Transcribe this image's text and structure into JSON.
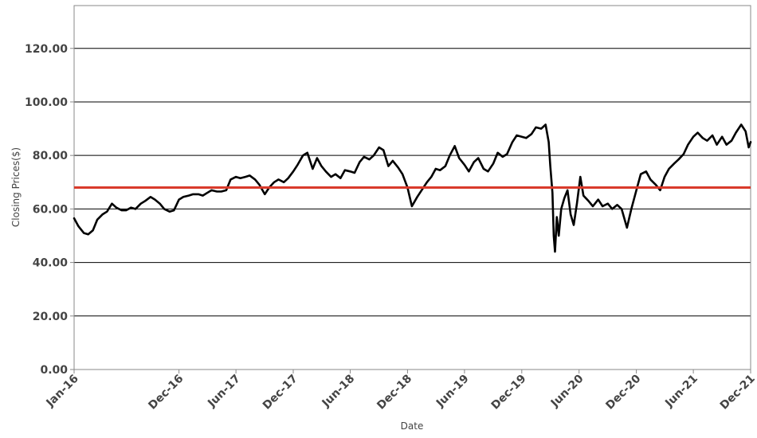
{
  "chart_data": {
    "type": "line",
    "xlabel": "Date",
    "ylabel": "Closing Prices($)",
    "ylim": [
      0,
      136
    ],
    "xlim": [
      "2016-01-01",
      "2021-12-01"
    ],
    "grid": "horizontal",
    "y_ticks": [
      0,
      20,
      40,
      60,
      80,
      100,
      120
    ],
    "y_tick_labels": [
      "0.00",
      "20.00",
      "40.00",
      "60.00",
      "80.00",
      "100.00",
      "120.00"
    ],
    "x_ticks": [
      "2016-01-01",
      "2016-12-01",
      "2017-06-01",
      "2017-12-01",
      "2018-06-01",
      "2018-12-01",
      "2019-06-01",
      "2019-12-01",
      "2020-06-01",
      "2020-12-01",
      "2021-06-01",
      "2021-12-01"
    ],
    "x_tick_labels": [
      "Jan-16",
      "Dec-16",
      "Jun-17",
      "Dec-17",
      "Jun-18",
      "Dec-18",
      "Jun-19",
      "Dec-19",
      "Jun-20",
      "Dec-20",
      "Jun-21",
      "Dec-21"
    ],
    "reference_line": {
      "value": 68,
      "color": "#d93a2b"
    },
    "series": [
      {
        "color": "#000000",
        "points": [
          [
            "2016-01-01",
            56.5
          ],
          [
            "2016-01-15",
            53.5
          ],
          [
            "2016-02-01",
            51.0
          ],
          [
            "2016-02-15",
            50.5
          ],
          [
            "2016-03-01",
            52.0
          ],
          [
            "2016-03-15",
            56.0
          ],
          [
            "2016-04-01",
            58.0
          ],
          [
            "2016-04-15",
            59.0
          ],
          [
            "2016-05-01",
            62.0
          ],
          [
            "2016-05-15",
            60.5
          ],
          [
            "2016-06-01",
            59.5
          ],
          [
            "2016-06-15",
            59.5
          ],
          [
            "2016-07-01",
            60.5
          ],
          [
            "2016-07-15",
            60.0
          ],
          [
            "2016-08-01",
            62.0
          ],
          [
            "2016-08-15",
            63.0
          ],
          [
            "2016-09-01",
            64.5
          ],
          [
            "2016-09-15",
            63.5
          ],
          [
            "2016-10-01",
            62.0
          ],
          [
            "2016-10-15",
            60.0
          ],
          [
            "2016-11-01",
            59.0
          ],
          [
            "2016-11-15",
            59.5
          ],
          [
            "2016-12-01",
            63.5
          ],
          [
            "2016-12-15",
            64.5
          ],
          [
            "2017-01-01",
            65.0
          ],
          [
            "2017-01-15",
            65.5
          ],
          [
            "2017-02-01",
            65.5
          ],
          [
            "2017-02-15",
            65.0
          ],
          [
            "2017-03-01",
            66.0
          ],
          [
            "2017-03-15",
            67.0
          ],
          [
            "2017-04-01",
            66.5
          ],
          [
            "2017-04-15",
            66.5
          ],
          [
            "2017-05-01",
            67.0
          ],
          [
            "2017-05-15",
            71.0
          ],
          [
            "2017-06-01",
            72.0
          ],
          [
            "2017-06-15",
            71.5
          ],
          [
            "2017-07-01",
            72.0
          ],
          [
            "2017-07-15",
            72.5
          ],
          [
            "2017-08-01",
            71.0
          ],
          [
            "2017-08-15",
            69.0
          ],
          [
            "2017-09-01",
            65.5
          ],
          [
            "2017-09-15",
            68.0
          ],
          [
            "2017-10-01",
            70.0
          ],
          [
            "2017-10-15",
            71.0
          ],
          [
            "2017-11-01",
            70.0
          ],
          [
            "2017-11-15",
            71.5
          ],
          [
            "2017-12-01",
            74.0
          ],
          [
            "2017-12-15",
            76.5
          ],
          [
            "2018-01-01",
            80.0
          ],
          [
            "2018-01-15",
            81.0
          ],
          [
            "2018-02-01",
            75.0
          ],
          [
            "2018-02-15",
            79.0
          ],
          [
            "2018-03-01",
            76.0
          ],
          [
            "2018-03-15",
            74.0
          ],
          [
            "2018-04-01",
            72.0
          ],
          [
            "2018-04-15",
            73.0
          ],
          [
            "2018-05-01",
            71.5
          ],
          [
            "2018-05-15",
            74.5
          ],
          [
            "2018-06-01",
            74.0
          ],
          [
            "2018-06-15",
            73.5
          ],
          [
            "2018-07-01",
            77.5
          ],
          [
            "2018-07-15",
            79.5
          ],
          [
            "2018-08-01",
            78.5
          ],
          [
            "2018-08-15",
            80.0
          ],
          [
            "2018-09-01",
            83.0
          ],
          [
            "2018-09-15",
            82.0
          ],
          [
            "2018-10-01",
            76.0
          ],
          [
            "2018-10-15",
            78.0
          ],
          [
            "2018-11-01",
            75.5
          ],
          [
            "2018-11-15",
            73.0
          ],
          [
            "2018-12-01",
            68.0
          ],
          [
            "2018-12-15",
            61.0
          ],
          [
            "2019-01-01",
            64.5
          ],
          [
            "2019-01-15",
            67.0
          ],
          [
            "2019-02-01",
            70.0
          ],
          [
            "2019-02-15",
            72.0
          ],
          [
            "2019-03-01",
            75.0
          ],
          [
            "2019-03-15",
            74.5
          ],
          [
            "2019-04-01",
            76.0
          ],
          [
            "2019-04-15",
            80.0
          ],
          [
            "2019-05-01",
            83.5
          ],
          [
            "2019-05-15",
            79.0
          ],
          [
            "2019-06-01",
            76.5
          ],
          [
            "2019-06-15",
            74.0
          ],
          [
            "2019-07-01",
            77.5
          ],
          [
            "2019-07-15",
            79.0
          ],
          [
            "2019-08-01",
            75.0
          ],
          [
            "2019-08-15",
            74.0
          ],
          [
            "2019-09-01",
            77.0
          ],
          [
            "2019-09-15",
            81.0
          ],
          [
            "2019-10-01",
            79.5
          ],
          [
            "2019-10-15",
            80.5
          ],
          [
            "2019-11-01",
            85.0
          ],
          [
            "2019-11-15",
            87.5
          ],
          [
            "2019-12-01",
            87.0
          ],
          [
            "2019-12-15",
            86.5
          ],
          [
            "2020-01-01",
            88.0
          ],
          [
            "2020-01-15",
            90.5
          ],
          [
            "2020-02-01",
            90.0
          ],
          [
            "2020-02-15",
            91.5
          ],
          [
            "2020-02-25",
            85.0
          ],
          [
            "2020-03-01",
            76.0
          ],
          [
            "2020-03-08",
            66.0
          ],
          [
            "2020-03-12",
            50.0
          ],
          [
            "2020-03-16",
            44.0
          ],
          [
            "2020-03-22",
            57.0
          ],
          [
            "2020-03-28",
            50.0
          ],
          [
            "2020-04-05",
            60.0
          ],
          [
            "2020-04-15",
            64.0
          ],
          [
            "2020-04-25",
            67.0
          ],
          [
            "2020-05-05",
            58.0
          ],
          [
            "2020-05-15",
            54.0
          ],
          [
            "2020-05-25",
            62.0
          ],
          [
            "2020-06-05",
            72.0
          ],
          [
            "2020-06-15",
            65.0
          ],
          [
            "2020-07-01",
            63.0
          ],
          [
            "2020-07-15",
            61.0
          ],
          [
            "2020-08-01",
            63.5
          ],
          [
            "2020-08-15",
            61.0
          ],
          [
            "2020-09-01",
            62.0
          ],
          [
            "2020-09-15",
            60.0
          ],
          [
            "2020-10-01",
            61.5
          ],
          [
            "2020-10-15",
            60.0
          ],
          [
            "2020-11-01",
            53.0
          ],
          [
            "2020-11-15",
            60.0
          ],
          [
            "2020-12-01",
            67.0
          ],
          [
            "2020-12-15",
            73.0
          ],
          [
            "2021-01-01",
            74.0
          ],
          [
            "2021-01-15",
            71.0
          ],
          [
            "2021-02-01",
            69.0
          ],
          [
            "2021-02-15",
            67.0
          ],
          [
            "2021-03-01",
            72.0
          ],
          [
            "2021-03-15",
            75.0
          ],
          [
            "2021-04-01",
            77.0
          ],
          [
            "2021-04-15",
            78.5
          ],
          [
            "2021-05-01",
            80.5
          ],
          [
            "2021-05-15",
            84.0
          ],
          [
            "2021-06-01",
            87.0
          ],
          [
            "2021-06-15",
            88.5
          ],
          [
            "2021-07-01",
            86.5
          ],
          [
            "2021-07-15",
            85.5
          ],
          [
            "2021-08-01",
            87.5
          ],
          [
            "2021-08-15",
            84.0
          ],
          [
            "2021-09-01",
            87.0
          ],
          [
            "2021-09-15",
            84.0
          ],
          [
            "2021-10-01",
            85.5
          ],
          [
            "2021-10-15",
            88.5
          ],
          [
            "2021-11-01",
            91.5
          ],
          [
            "2021-11-15",
            89.0
          ],
          [
            "2021-11-25",
            83.0
          ],
          [
            "2021-12-01",
            85.0
          ]
        ]
      }
    ]
  }
}
